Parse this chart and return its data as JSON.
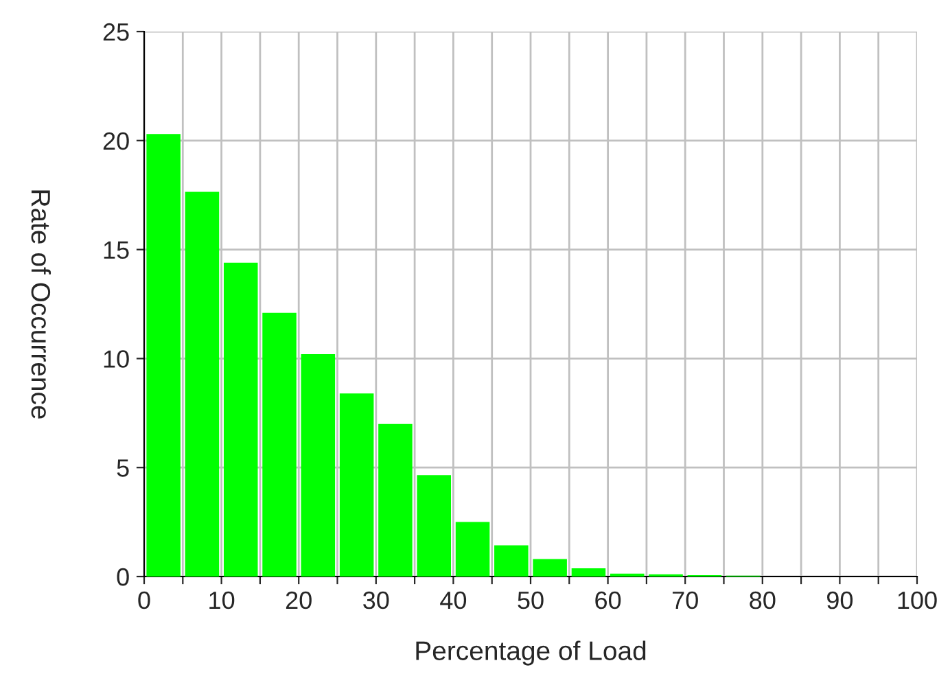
{
  "chart_data": {
    "type": "histogram",
    "xlabel": "Percentage of Load",
    "ylabel": "Rate of Occurrence",
    "bins": [
      0,
      5,
      10,
      15,
      20,
      25,
      30,
      35,
      40,
      45,
      50,
      55,
      60,
      65,
      70,
      75,
      80,
      85,
      90,
      95,
      100
    ],
    "values": [
      20.3,
      17.65,
      14.4,
      12.1,
      10.2,
      8.4,
      7.0,
      4.65,
      2.5,
      1.43,
      0.8,
      0.38,
      0.13,
      0.1,
      0.06,
      0.04,
      0,
      0,
      0,
      0
    ],
    "color": "#00ff00",
    "xlim": [
      0,
      100
    ],
    "ylim": [
      0,
      25
    ],
    "xticks": [
      0,
      {
        "value": 5,
        "label": null
      },
      10,
      {
        "value": 15,
        "label": null
      },
      20,
      {
        "value": 25,
        "label": null
      },
      30,
      {
        "value": 35,
        "label": null
      },
      40,
      {
        "value": 45,
        "label": null
      },
      50,
      {
        "value": 55,
        "label": null
      },
      60,
      {
        "value": 65,
        "label": null
      },
      70,
      {
        "value": 75,
        "label": null
      },
      80,
      {
        "value": 85,
        "label": null
      },
      90,
      {
        "value": 95,
        "label": null
      },
      100
    ],
    "yticks": [
      0,
      5,
      10,
      15,
      20,
      25
    ],
    "grid": true
  }
}
